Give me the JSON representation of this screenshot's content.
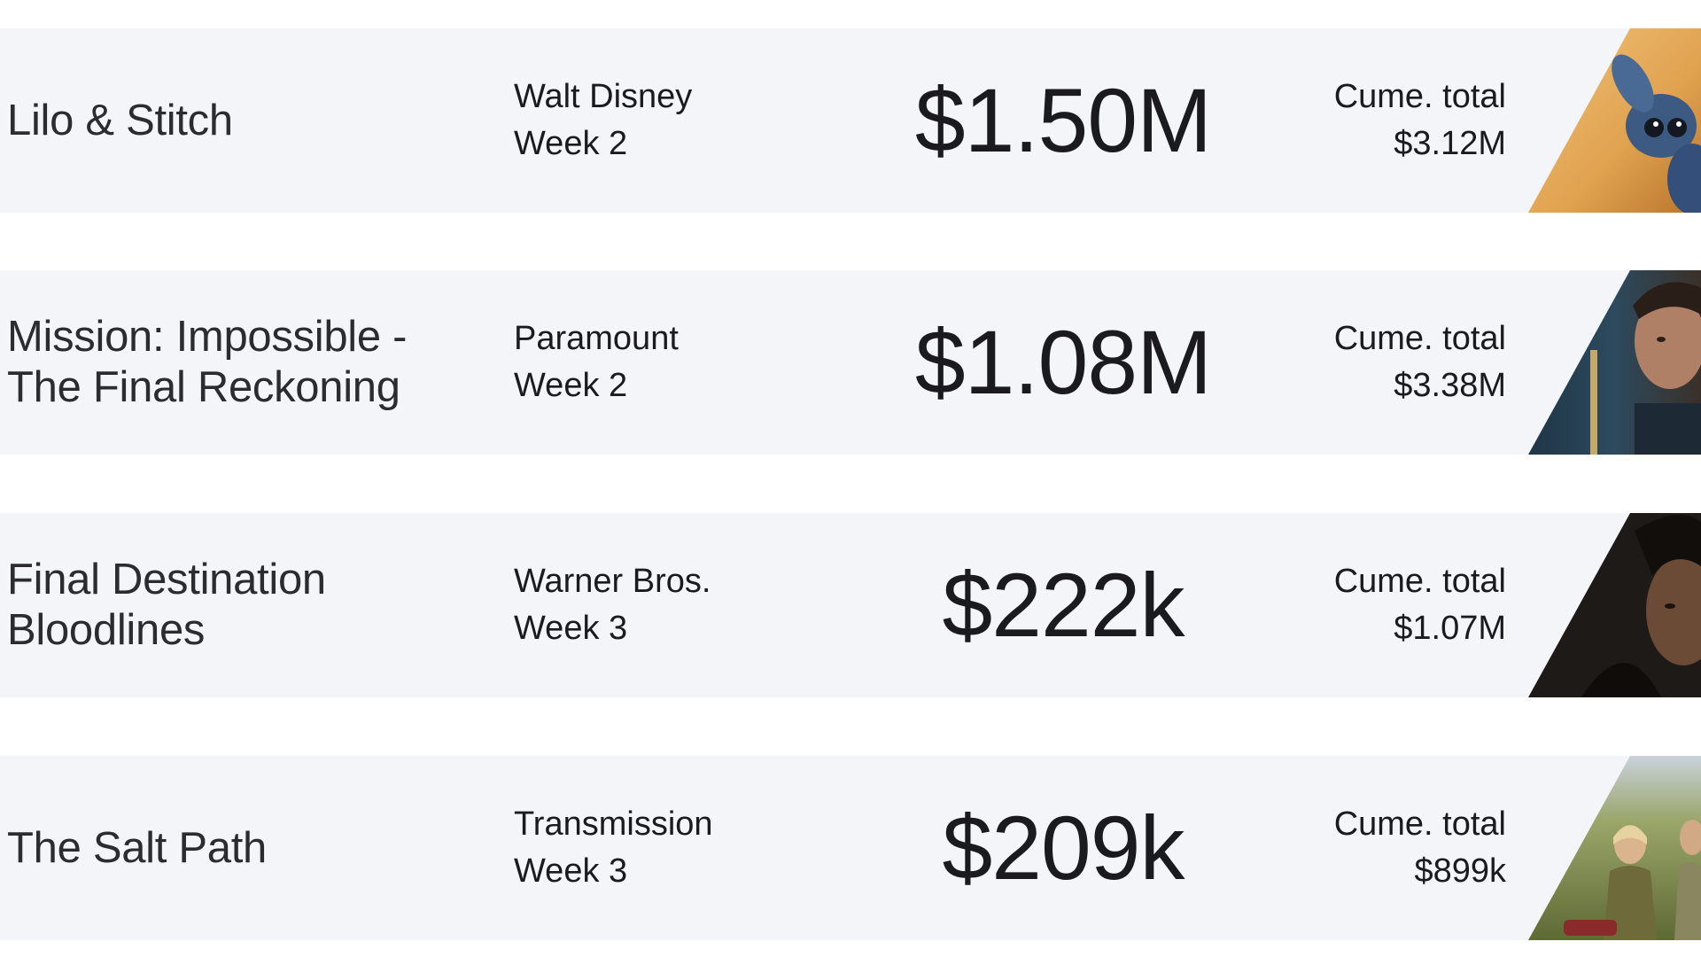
{
  "rows": [
    {
      "title_lines": [
        "Lilo & Stitch"
      ],
      "distributor": "Walt Disney",
      "week": "Week 2",
      "gross": "$1.50M",
      "cume_label": "Cume. total",
      "cume_value": "$3.12M",
      "image_icon": "stitch-poster-thumbnail",
      "image_colors": [
        "#e0a24f",
        "#3d5a82"
      ]
    },
    {
      "title_lines": [
        "Mission: Impossible -",
        "The Final Reckoning"
      ],
      "distributor": "Paramount",
      "week": "Week 2",
      "gross": "$1.08M",
      "cume_label": "Cume. total",
      "cume_value": "$3.38M",
      "image_icon": "mission-impossible-thumbnail",
      "image_colors": [
        "#2d4a5e",
        "#b08066"
      ]
    },
    {
      "title_lines": [
        "Final Destination",
        "Bloodlines"
      ],
      "distributor": "Warner Bros.",
      "week": "Week 3",
      "gross": "$222k",
      "cume_label": "Cume. total",
      "cume_value": "$1.07M",
      "image_icon": "final-destination-thumbnail",
      "image_colors": [
        "#1e1a17",
        "#6b4a36"
      ]
    },
    {
      "title_lines": [
        "The Salt Path"
      ],
      "distributor": "Transmission",
      "week": "Week 3",
      "gross": "$209k",
      "cume_label": "Cume. total",
      "cume_value": "$899k",
      "image_icon": "salt-path-thumbnail",
      "image_colors": [
        "#7d8a4a",
        "#c9d2dc"
      ]
    }
  ]
}
